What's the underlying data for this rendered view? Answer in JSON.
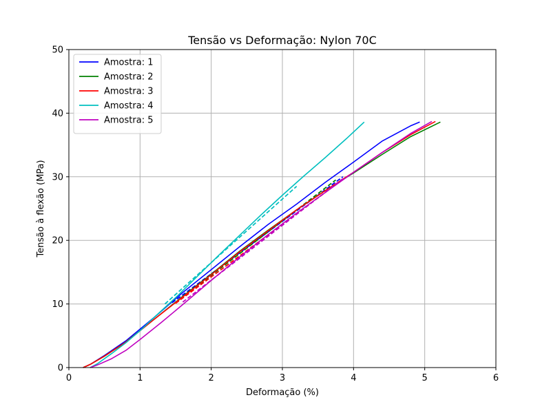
{
  "chart_data": {
    "type": "line",
    "title": "Tensão vs Deformação: Nylon 70C",
    "xlabel": "Deformação (%)",
    "ylabel": "Tensão à flexão (MPa)",
    "xlim": [
      0,
      6
    ],
    "ylim": [
      0,
      50
    ],
    "xticks": [
      0,
      1,
      2,
      3,
      4,
      5,
      6
    ],
    "yticks": [
      0,
      10,
      20,
      30,
      40,
      50
    ],
    "grid": true,
    "legend_position": "upper-left",
    "series": [
      {
        "name": "Amostra: 1",
        "color": "#0000ff",
        "x": [
          0.2,
          0.3,
          0.5,
          0.8,
          1.2,
          1.6,
          2.0,
          2.4,
          2.8,
          3.2,
          3.6,
          4.0,
          4.4,
          4.8,
          4.93
        ],
        "y": [
          0,
          0.5,
          1.9,
          4.2,
          7.9,
          11.8,
          15.4,
          19.0,
          22.5,
          25.7,
          29.1,
          32.3,
          35.6,
          38.0,
          38.6
        ],
        "fit_x": [
          1.45,
          3.85
        ],
        "fit_y": [
          10.2,
          30.0
        ]
      },
      {
        "name": "Amostra: 2",
        "color": "#008000",
        "x": [
          0.2,
          0.3,
          0.5,
          0.8,
          1.2,
          1.6,
          2.0,
          2.4,
          2.8,
          3.2,
          3.6,
          4.0,
          4.4,
          4.8,
          5.22
        ],
        "y": [
          0,
          0.5,
          1.8,
          4.0,
          7.6,
          11.2,
          14.7,
          18.3,
          21.6,
          24.8,
          27.8,
          30.6,
          33.5,
          36.3,
          38.6
        ],
        "fit_x": [
          1.5,
          3.75
        ],
        "fit_y": [
          10.2,
          29.5
        ]
      },
      {
        "name": "Amostra: 3",
        "color": "#ff0000",
        "x": [
          0.2,
          0.3,
          0.5,
          0.8,
          1.2,
          1.6,
          2.0,
          2.4,
          2.8,
          3.2,
          3.6,
          4.0,
          4.4,
          4.8,
          5.15
        ],
        "y": [
          0,
          0.5,
          1.8,
          4.0,
          7.6,
          11.1,
          14.6,
          18.2,
          21.5,
          24.8,
          27.8,
          30.7,
          33.8,
          36.6,
          38.7
        ],
        "fit_x": [
          1.5,
          3.9
        ],
        "fit_y": [
          10.1,
          30.0
        ]
      },
      {
        "name": "Amostra: 4",
        "color": "#00bfbf",
        "x": [
          0.3,
          0.4,
          0.6,
          0.8,
          1.0,
          1.2,
          1.5,
          1.8,
          2.1,
          2.4,
          2.7,
          3.0,
          3.3,
          3.6,
          3.9,
          4.15
        ],
        "y": [
          0,
          0.6,
          2.2,
          3.9,
          5.8,
          7.9,
          11.0,
          14.3,
          17.6,
          20.8,
          24.0,
          27.1,
          30.1,
          33.0,
          36.0,
          38.6
        ],
        "fit_x": [
          1.35,
          3.2
        ],
        "fit_y": [
          10.0,
          28.5
        ]
      },
      {
        "name": "Amostra: 5",
        "color": "#bf00bf",
        "x": [
          0.3,
          0.4,
          0.6,
          0.8,
          1.0,
          1.3,
          1.6,
          2.0,
          2.4,
          2.8,
          3.2,
          3.6,
          4.0,
          4.4,
          4.8,
          5.1
        ],
        "y": [
          0,
          0.4,
          1.4,
          2.7,
          4.4,
          7.1,
          9.9,
          13.7,
          17.4,
          20.9,
          24.3,
          27.5,
          30.7,
          33.8,
          36.8,
          38.7
        ],
        "fit_x": [
          1.6,
          3.85
        ],
        "fit_y": [
          10.3,
          29.7
        ]
      }
    ]
  }
}
